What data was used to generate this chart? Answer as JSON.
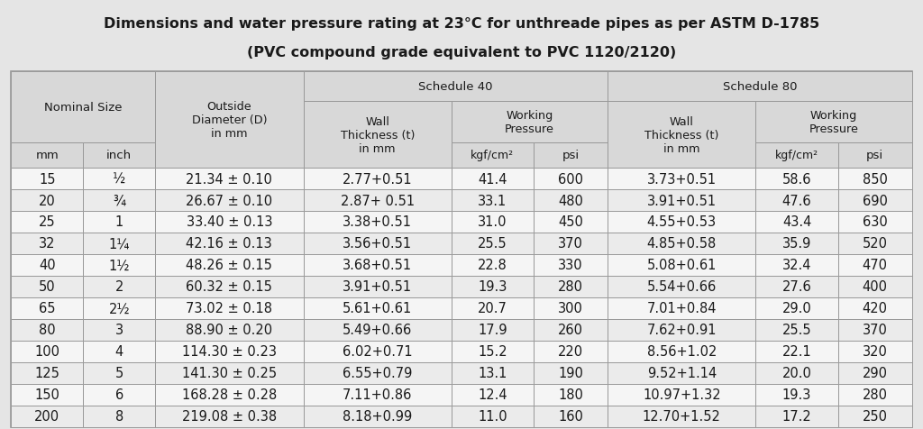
{
  "title_line1": "Dimensions and water pressure rating at 23°C for unthreade pipes as per ASTM D-1785",
  "title_line2": "(PVC compound grade equivalent to PVC 1120/2120)",
  "bg_color": "#e5e5e5",
  "hdr_bg": "#d8d8d8",
  "white_bg": "#f5f5f5",
  "border_color": "#999999",
  "text_color": "#1a1a1a",
  "rows": [
    [
      "15",
      "½",
      "21.34 ± 0.10",
      "2.77+0.51",
      "41.4",
      "600",
      "3.73+0.51",
      "58.6",
      "850"
    ],
    [
      "20",
      "¾",
      "26.67 ± 0.10",
      "2.87+ 0.51",
      "33.1",
      "480",
      "3.91+0.51",
      "47.6",
      "690"
    ],
    [
      "25",
      "1",
      "33.40 ± 0.13",
      "3.38+0.51",
      "31.0",
      "450",
      "4.55+0.53",
      "43.4",
      "630"
    ],
    [
      "32",
      "1¼",
      "42.16 ± 0.13",
      "3.56+0.51",
      "25.5",
      "370",
      "4.85+0.58",
      "35.9",
      "520"
    ],
    [
      "40",
      "1½",
      "48.26 ± 0.15",
      "3.68+0.51",
      "22.8",
      "330",
      "5.08+0.61",
      "32.4",
      "470"
    ],
    [
      "50",
      "2",
      "60.32 ± 0.15",
      "3.91+0.51",
      "19.3",
      "280",
      "5.54+0.66",
      "27.6",
      "400"
    ],
    [
      "65",
      "2½",
      "73.02 ± 0.18",
      "5.61+0.61",
      "20.7",
      "300",
      "7.01+0.84",
      "29.0",
      "420"
    ],
    [
      "80",
      "3",
      "88.90 ± 0.20",
      "5.49+0.66",
      "17.9",
      "260",
      "7.62+0.91",
      "25.5",
      "370"
    ],
    [
      "100",
      "4",
      "114.30 ± 0.23",
      "6.02+0.71",
      "15.2",
      "220",
      "8.56+1.02",
      "22.1",
      "320"
    ],
    [
      "125",
      "5",
      "141.30 ± 0.25",
      "6.55+0.79",
      "13.1",
      "190",
      "9.52+1.14",
      "20.0",
      "290"
    ],
    [
      "150",
      "6",
      "168.28 ± 0.28",
      "7.11+0.86",
      "12.4",
      "180",
      "10.97+1.32",
      "19.3",
      "280"
    ],
    [
      "200",
      "8",
      "219.08 ± 0.38",
      "8.18+0.99",
      "11.0",
      "160",
      "12.70+1.52",
      "17.2",
      "250"
    ]
  ],
  "title_fontsize": 11.5,
  "header_fontsize": 9.5,
  "cell_fontsize": 10.5
}
